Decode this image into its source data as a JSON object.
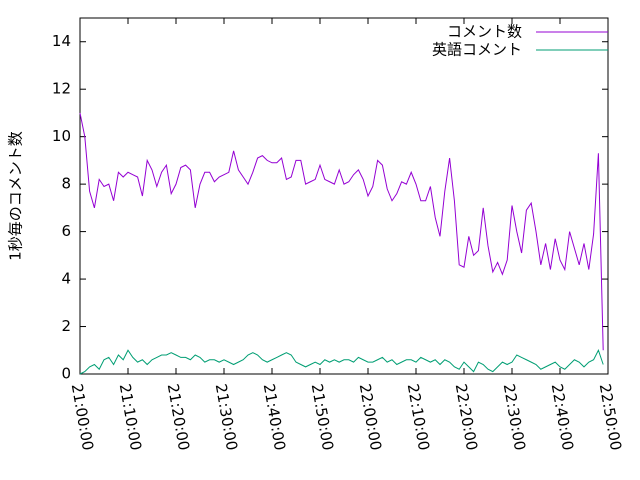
{
  "chart_data": {
    "type": "line",
    "ylabel": "1秒毎のコメント数",
    "x": [
      "21:00:00",
      "21:01:00",
      "21:02:00",
      "21:03:00",
      "21:04:00",
      "21:05:00",
      "21:06:00",
      "21:07:00",
      "21:08:00",
      "21:09:00",
      "21:10:00",
      "21:11:00",
      "21:12:00",
      "21:13:00",
      "21:14:00",
      "21:15:00",
      "21:16:00",
      "21:17:00",
      "21:18:00",
      "21:19:00",
      "21:20:00",
      "21:21:00",
      "21:22:00",
      "21:23:00",
      "21:24:00",
      "21:25:00",
      "21:26:00",
      "21:27:00",
      "21:28:00",
      "21:29:00",
      "21:30:00",
      "21:31:00",
      "21:32:00",
      "21:33:00",
      "21:34:00",
      "21:35:00",
      "21:36:00",
      "21:37:00",
      "21:38:00",
      "21:39:00",
      "21:40:00",
      "21:41:00",
      "21:42:00",
      "21:43:00",
      "21:44:00",
      "21:45:00",
      "21:46:00",
      "21:47:00",
      "21:48:00",
      "21:49:00",
      "21:50:00",
      "21:51:00",
      "21:52:00",
      "21:53:00",
      "21:54:00",
      "21:55:00",
      "21:56:00",
      "21:57:00",
      "21:58:00",
      "21:59:00",
      "22:00:00",
      "22:01:00",
      "22:02:00",
      "22:03:00",
      "22:04:00",
      "22:05:00",
      "22:06:00",
      "22:07:00",
      "22:08:00",
      "22:09:00",
      "22:10:00",
      "22:11:00",
      "22:12:00",
      "22:13:00",
      "22:14:00",
      "22:15:00",
      "22:16:00",
      "22:17:00",
      "22:18:00",
      "22:19:00",
      "22:20:00",
      "22:21:00",
      "22:22:00",
      "22:23:00",
      "22:24:00",
      "22:25:00",
      "22:26:00",
      "22:27:00",
      "22:28:00",
      "22:29:00",
      "22:30:00",
      "22:31:00",
      "22:32:00",
      "22:33:00",
      "22:34:00",
      "22:35:00",
      "22:36:00",
      "22:37:00",
      "22:38:00",
      "22:39:00",
      "22:40:00",
      "22:41:00",
      "22:42:00",
      "22:43:00",
      "22:44:00",
      "22:45:00",
      "22:46:00",
      "22:47:00",
      "22:48:00",
      "22:49:00"
    ],
    "series": [
      {
        "name": "コメント数",
        "color": "#9400d3",
        "values": [
          11.0,
          10.0,
          7.7,
          7.0,
          8.2,
          7.9,
          8.0,
          7.3,
          8.5,
          8.3,
          8.5,
          8.4,
          8.3,
          7.5,
          9.0,
          8.6,
          7.9,
          8.5,
          8.8,
          7.6,
          8.0,
          8.7,
          8.8,
          8.6,
          7.0,
          8.0,
          8.5,
          8.5,
          8.1,
          8.3,
          8.4,
          8.5,
          9.4,
          8.6,
          8.3,
          8.0,
          8.5,
          9.1,
          9.2,
          9.0,
          8.9,
          8.9,
          9.1,
          8.2,
          8.3,
          9.0,
          9.0,
          8.0,
          8.1,
          8.2,
          8.8,
          8.2,
          8.1,
          8.0,
          8.6,
          8.0,
          8.1,
          8.4,
          8.6,
          8.2,
          7.5,
          7.9,
          9.0,
          8.8,
          7.8,
          7.3,
          7.6,
          8.1,
          8.0,
          8.5,
          8.0,
          7.3,
          7.3,
          7.9,
          6.6,
          5.8,
          7.7,
          9.1,
          7.3,
          4.6,
          4.5,
          5.8,
          5.0,
          5.2,
          7.0,
          5.4,
          4.3,
          4.7,
          4.2,
          4.8,
          7.1,
          6.0,
          5.1,
          6.9,
          7.2,
          6.0,
          4.6,
          5.5,
          4.4,
          5.7,
          4.8,
          4.4,
          6.0,
          5.3,
          4.6,
          5.5,
          4.4,
          5.9,
          9.3,
          1.0
        ]
      },
      {
        "name": "英語コメント",
        "color": "#009e73",
        "values": [
          0.0,
          0.1,
          0.3,
          0.4,
          0.2,
          0.6,
          0.7,
          0.4,
          0.8,
          0.6,
          1.0,
          0.7,
          0.5,
          0.6,
          0.4,
          0.6,
          0.7,
          0.8,
          0.8,
          0.9,
          0.8,
          0.7,
          0.7,
          0.6,
          0.8,
          0.7,
          0.5,
          0.6,
          0.6,
          0.5,
          0.6,
          0.5,
          0.4,
          0.5,
          0.6,
          0.8,
          0.9,
          0.8,
          0.6,
          0.5,
          0.6,
          0.7,
          0.8,
          0.9,
          0.8,
          0.5,
          0.4,
          0.3,
          0.4,
          0.5,
          0.4,
          0.6,
          0.5,
          0.6,
          0.5,
          0.6,
          0.6,
          0.5,
          0.7,
          0.6,
          0.5,
          0.5,
          0.6,
          0.7,
          0.5,
          0.6,
          0.4,
          0.5,
          0.6,
          0.6,
          0.5,
          0.7,
          0.6,
          0.5,
          0.6,
          0.4,
          0.6,
          0.5,
          0.3,
          0.2,
          0.5,
          0.3,
          0.1,
          0.5,
          0.4,
          0.2,
          0.1,
          0.3,
          0.5,
          0.4,
          0.5,
          0.8,
          0.7,
          0.6,
          0.5,
          0.4,
          0.2,
          0.3,
          0.4,
          0.5,
          0.3,
          0.2,
          0.4,
          0.6,
          0.5,
          0.3,
          0.5,
          0.6,
          1.0,
          0.4
        ]
      }
    ],
    "xlim": [
      "21:00:00",
      "22:50:00"
    ],
    "xticks": [
      "21:00:00",
      "21:10:00",
      "21:20:00",
      "21:30:00",
      "21:40:00",
      "21:50:00",
      "22:00:00",
      "22:10:00",
      "22:20:00",
      "22:30:00",
      "22:40:00",
      "22:50:00"
    ],
    "ylim": [
      0,
      15
    ],
    "yticks": [
      0,
      2,
      4,
      6,
      8,
      10,
      12,
      14
    ],
    "legend": "top-right"
  }
}
